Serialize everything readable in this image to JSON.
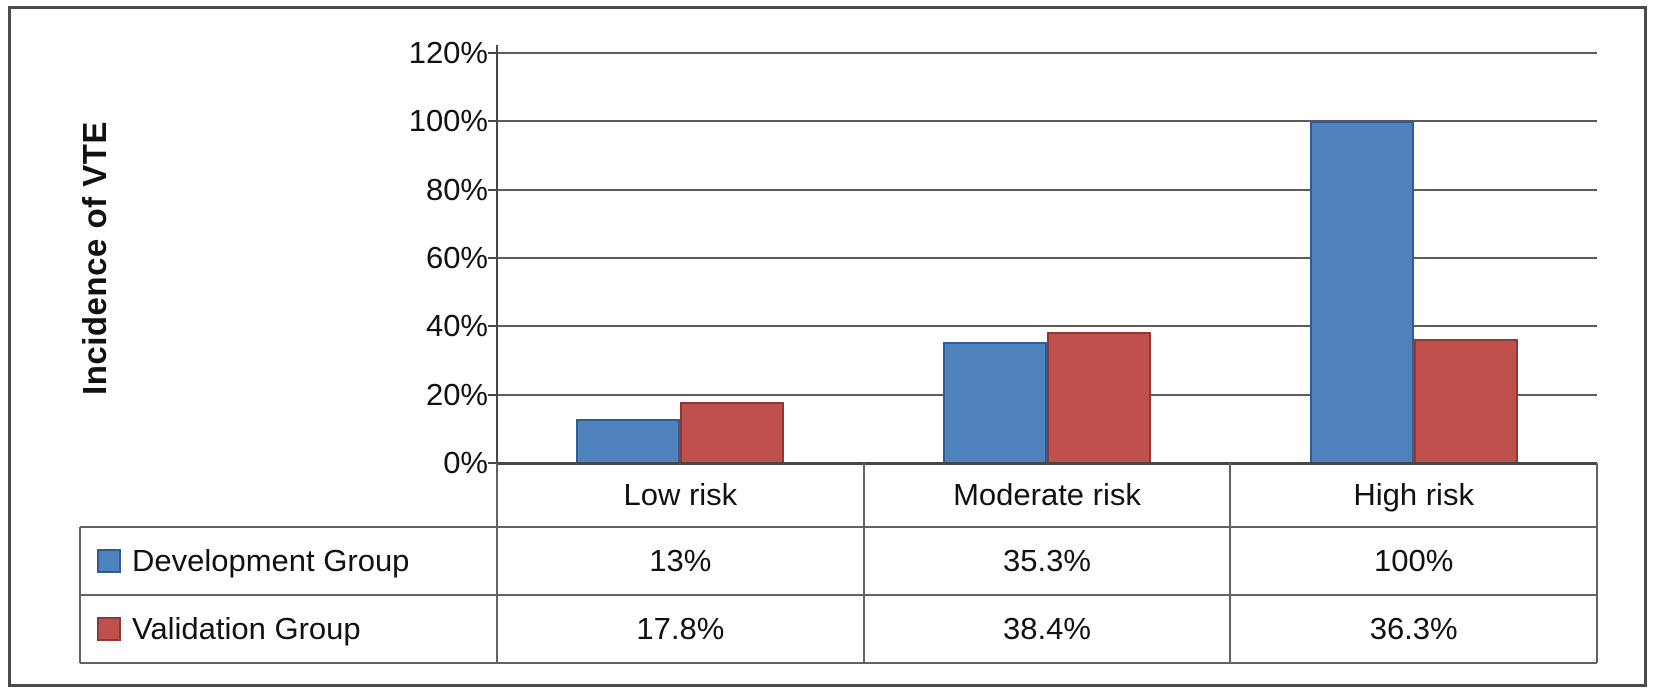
{
  "chart_data": {
    "type": "bar",
    "title": "",
    "ylabel": "Incidence of VTE",
    "xlabel": "",
    "categories": [
      "Low risk",
      "Moderate risk",
      "High risk"
    ],
    "series": [
      {
        "name": "Development Group",
        "color": "#4F81BD",
        "border_color": "#2f5c93",
        "values": [
          13,
          35.3,
          100
        ],
        "value_labels": [
          "13%",
          "35.3%",
          "100%"
        ]
      },
      {
        "name": "Validation Group",
        "color": "#C0504D",
        "border_color": "#8f3835",
        "values": [
          17.8,
          38.4,
          36.3
        ],
        "value_labels": [
          "17.8%",
          "38.4%",
          "36.3%"
        ]
      }
    ],
    "ylim": [
      0,
      120
    ],
    "ytick_step": 20,
    "ytick_labels": [
      "0%",
      "20%",
      "40%",
      "60%",
      "80%",
      "100%",
      "120%"
    ],
    "grid": true,
    "gridline_color": "#5c5c5c",
    "legend_position": "data-table-left",
    "data_table_shown": true
  }
}
